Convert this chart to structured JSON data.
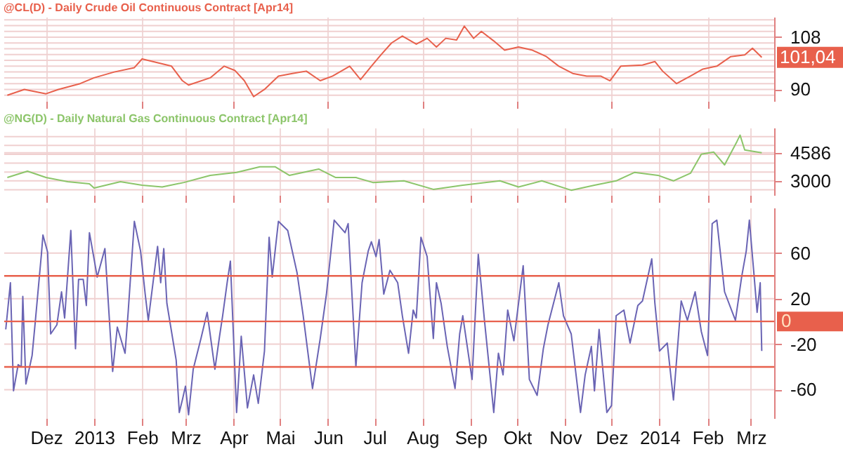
{
  "chart_data": [
    {
      "type": "line",
      "title": "@CL(D) - Daily  Crude Oil Continuous Contract [Apr14]",
      "grid": true,
      "tick_labels": "y",
      "xlim": [
        "2012-11-04",
        "2014-03-16"
      ],
      "xticks": [
        {
          "value": "2012-12-01",
          "label": null
        },
        {
          "value": "2013-01-01",
          "label": null
        },
        {
          "value": "2013-02-01",
          "label": null
        },
        {
          "value": "2013-03-01",
          "label": null
        },
        {
          "value": "2013-04-01",
          "label": null
        },
        {
          "value": "2013-05-01",
          "label": null
        },
        {
          "value": "2013-06-01",
          "label": null
        },
        {
          "value": "2013-07-01",
          "label": null
        },
        {
          "value": "2013-08-01",
          "label": null
        },
        {
          "value": "2013-09-01",
          "label": null
        },
        {
          "value": "2013-10-01",
          "label": null
        },
        {
          "value": "2013-11-01",
          "label": null
        },
        {
          "value": "2013-12-01",
          "label": null
        },
        {
          "value": "2014-01-01",
          "label": null
        },
        {
          "value": "2014-02-01",
          "label": null
        },
        {
          "value": "2014-03-01",
          "label": null
        }
      ],
      "ylim": [
        86,
        115
      ],
      "yticks": [
        {
          "value": 88,
          "label": null
        },
        90,
        {
          "value": 92,
          "label": null
        },
        {
          "value": 94,
          "label": null
        },
        {
          "value": 96,
          "label": null
        },
        {
          "value": 98,
          "label": null
        },
        {
          "value": 100,
          "label": null
        },
        {
          "value": 102,
          "label": null
        },
        {
          "value": 104,
          "label": null
        },
        {
          "value": 106,
          "label": null
        },
        108,
        {
          "value": 110,
          "label": null
        },
        {
          "value": 112,
          "label": null
        },
        {
          "value": 114,
          "label": null
        }
      ],
      "x": [
        "2012-11-06",
        "2012-11-17",
        "2012-12-01",
        "2012-12-09",
        "2012-12-23",
        "2013-01-01",
        "2013-01-14",
        "2013-01-27",
        "2013-02-01",
        "2013-02-14",
        "2013-02-20",
        "2013-02-27",
        "2013-03-03",
        "2013-03-17",
        "2013-03-26",
        "2013-04-02",
        "2013-04-08",
        "2013-04-14",
        "2013-04-21",
        "2013-04-30",
        "2013-05-09",
        "2013-05-18",
        "2013-05-27",
        "2013-06-04",
        "2013-06-15",
        "2013-06-22",
        "2013-06-29",
        "2013-07-05",
        "2013-07-12",
        "2013-07-19",
        "2013-07-28",
        "2013-08-04",
        "2013-08-10",
        "2013-08-16",
        "2013-08-23",
        "2013-08-28",
        "2013-09-03",
        "2013-09-08",
        "2013-09-16",
        "2013-09-23",
        "2013-10-02",
        "2013-10-11",
        "2013-10-20",
        "2013-10-28",
        "2013-11-06",
        "2013-11-15",
        "2013-11-24",
        "2013-11-30",
        "2013-12-07",
        "2013-12-21",
        "2013-12-29",
        "2014-01-03",
        "2014-01-12",
        "2014-01-21",
        "2014-01-29",
        "2014-02-07",
        "2014-02-16",
        "2014-02-25",
        "2014-03-02",
        "2014-03-08"
      ],
      "series": [
        {
          "color": "#e8604c",
          "values": [
            88,
            90,
            88.5,
            90,
            92,
            94,
            96,
            97.5,
            100.5,
            98.8,
            98,
            93,
            91.5,
            94,
            98,
            96.5,
            93,
            87.5,
            90,
            94.6,
            95.5,
            96.3,
            93,
            94.6,
            98,
            93.4,
            98,
            101.8,
            106,
            108.4,
            105.6,
            107.6,
            104.6,
            107.6,
            107,
            111.8,
            107.6,
            110,
            106.7,
            103.5,
            104.6,
            103.5,
            101.3,
            98,
            95.5,
            94.6,
            94.6,
            93,
            98,
            98.4,
            99.6,
            96.3,
            92,
            94.6,
            97,
            98,
            101.3,
            101.9,
            104.2,
            101.04
          ]
        }
      ],
      "annotations": [
        {
          "text": "101,04",
          "x": "2014-03-08",
          "y": 101.04
        }
      ]
    },
    {
      "type": "line",
      "title": "@NG(D) - Daily  Natural Gas Continuous Contract [Apr14]",
      "grid": true,
      "tick_labels": "y",
      "xlim": [
        "2012-11-04",
        "2014-03-16"
      ],
      "xticks": [
        {
          "value": "2012-12-01",
          "label": null
        },
        {
          "value": "2013-01-01",
          "label": null
        },
        {
          "value": "2013-02-01",
          "label": null
        },
        {
          "value": "2013-03-01",
          "label": null
        },
        {
          "value": "2013-04-01",
          "label": null
        },
        {
          "value": "2013-05-01",
          "label": null
        },
        {
          "value": "2013-06-01",
          "label": null
        },
        {
          "value": "2013-07-01",
          "label": null
        },
        {
          "value": "2013-08-01",
          "label": null
        },
        {
          "value": "2013-09-01",
          "label": null
        },
        {
          "value": "2013-10-01",
          "label": null
        },
        {
          "value": "2013-11-01",
          "label": null
        },
        {
          "value": "2013-12-01",
          "label": null
        },
        {
          "value": "2014-01-01",
          "label": null
        },
        {
          "value": "2014-02-01",
          "label": null
        },
        {
          "value": "2014-03-01",
          "label": null
        }
      ],
      "ylim": [
        2200,
        6000
      ],
      "yticks": [
        {
          "value": 2500,
          "label": null
        },
        3000,
        {
          "value": 3500,
          "label": null
        },
        {
          "value": 4000,
          "label": null
        },
        {
          "value": 4500,
          "label": null
        },
        4586,
        {
          "value": 5000,
          "label": null
        },
        {
          "value": 5500,
          "label": null
        }
      ],
      "x": [
        "2012-11-06",
        "2012-11-19",
        "2012-12-01",
        "2012-12-15",
        "2012-12-29",
        "2013-01-01",
        "2013-01-18",
        "2013-02-01",
        "2013-02-14",
        "2013-02-28",
        "2013-03-17",
        "2013-04-03",
        "2013-04-18",
        "2013-04-28",
        "2013-05-07",
        "2013-05-26",
        "2013-06-06",
        "2013-06-19",
        "2013-06-30",
        "2013-07-20",
        "2013-08-08",
        "2013-08-27",
        "2013-09-20",
        "2013-10-02",
        "2013-10-17",
        "2013-11-05",
        "2013-11-20",
        "2013-12-04",
        "2013-12-16",
        "2013-12-31",
        "2014-01-10",
        "2014-01-21",
        "2014-01-28",
        "2014-02-05",
        "2014-02-12",
        "2014-02-20",
        "2014-02-22",
        "2014-02-25",
        "2014-03-08"
      ],
      "series": [
        {
          "color": "#8cc56a",
          "values": [
            3187,
            3547,
            3187,
            2950,
            2832,
            2596,
            2950,
            2757,
            2658,
            2907,
            3311,
            3479,
            3790,
            3790,
            3311,
            3666,
            3187,
            3187,
            2907,
            3000,
            2521,
            2757,
            3000,
            2658,
            3000,
            2471,
            2757,
            3000,
            3479,
            3311,
            3000,
            3429,
            4505,
            4623,
            3902,
            5221,
            5581,
            4742,
            4586
          ]
        }
      ]
    },
    {
      "type": "line",
      "grid": true,
      "xlim": [
        "2012-11-04",
        "2014-03-16"
      ],
      "xticks": [
        {
          "value": "2012-12-01",
          "label": "Dez"
        },
        {
          "value": "2013-01-01",
          "label": "2013"
        },
        {
          "value": "2013-02-01",
          "label": "Feb"
        },
        {
          "value": "2013-03-01",
          "label": "Mrz"
        },
        {
          "value": "2013-04-01",
          "label": "Apr"
        },
        {
          "value": "2013-05-01",
          "label": "Mai"
        },
        {
          "value": "2013-06-01",
          "label": "Jun"
        },
        {
          "value": "2013-07-01",
          "label": "Jul"
        },
        {
          "value": "2013-08-01",
          "label": "Aug"
        },
        {
          "value": "2013-09-01",
          "label": "Sep"
        },
        {
          "value": "2013-10-01",
          "label": "Okt"
        },
        {
          "value": "2013-11-01",
          "label": "Nov"
        },
        {
          "value": "2013-12-01",
          "label": "Dez"
        },
        {
          "value": "2014-01-01",
          "label": "2014"
        },
        {
          "value": "2014-02-01",
          "label": "Feb"
        },
        {
          "value": "2014-03-01",
          "label": "Mrz"
        }
      ],
      "ylim": [
        -85,
        100
      ],
      "yticks": [
        -60,
        -20,
        20,
        60
      ],
      "x": [
        "2012-11-05",
        "2012-11-08",
        "2012-11-10",
        "2012-11-13",
        "2012-11-15",
        "2012-11-16",
        "2012-11-18",
        "2012-11-22",
        "2012-11-24",
        "2012-11-28",
        "2012-11-29",
        "2012-12-02",
        "2012-12-04",
        "2012-12-08",
        "2012-12-11",
        "2012-12-13",
        "2012-12-17",
        "2012-12-20",
        "2012-12-22",
        "2012-12-25",
        "2012-12-27",
        "2012-12-29",
        "2013-01-01",
        "2013-01-03",
        "2013-01-08",
        "2013-01-13",
        "2013-01-16",
        "2013-01-21",
        "2013-01-23",
        "2013-01-27",
        "2013-01-31",
        "2013-02-03",
        "2013-02-05",
        "2013-02-11",
        "2013-02-13",
        "2013-02-15",
        "2013-02-17",
        "2013-02-23",
        "2013-02-25",
        "2013-02-27",
        "2013-03-01",
        "2013-03-03",
        "2013-03-06",
        "2013-03-11",
        "2013-03-15",
        "2013-03-20",
        "2013-03-23",
        "2013-03-25",
        "2013-03-28",
        "2013-03-30",
        "2013-04-03",
        "2013-04-06",
        "2013-04-10",
        "2013-04-14",
        "2013-04-17",
        "2013-04-21",
        "2013-04-24",
        "2013-04-26",
        "2013-04-30",
        "2013-05-06",
        "2013-05-12",
        "2013-05-16",
        "2013-05-22",
        "2013-05-27",
        "2013-05-31",
        "2013-06-05",
        "2013-06-12",
        "2013-06-14",
        "2013-06-19",
        "2013-06-23",
        "2013-06-27",
        "2013-06-29",
        "2013-07-02",
        "2013-07-04",
        "2013-07-07",
        "2013-07-11",
        "2013-07-16",
        "2013-07-19",
        "2013-07-23",
        "2013-07-26",
        "2013-07-28",
        "2013-07-31",
        "2013-08-04",
        "2013-08-08",
        "2013-08-10",
        "2013-08-13",
        "2013-08-17",
        "2013-08-22",
        "2013-08-25",
        "2013-08-27",
        "2013-09-02",
        "2013-09-06",
        "2013-09-10",
        "2013-09-16",
        "2013-09-19",
        "2013-09-22",
        "2013-09-25",
        "2013-09-29",
        "2013-10-05",
        "2013-10-09",
        "2013-10-14",
        "2013-10-18",
        "2013-10-21",
        "2013-10-28",
        "2013-10-31",
        "2013-11-05",
        "2013-11-11",
        "2013-11-14",
        "2013-11-18",
        "2013-11-20",
        "2013-11-23",
        "2013-11-28",
        "2013-12-01",
        "2013-12-04",
        "2013-12-09",
        "2013-12-13",
        "2013-12-18",
        "2013-12-21",
        "2013-12-27",
        "2013-12-29",
        "2014-01-01",
        "2014-01-06",
        "2014-01-10",
        "2014-01-15",
        "2014-01-19",
        "2014-01-24",
        "2014-01-28",
        "2014-02-01",
        "2014-02-04",
        "2014-02-07",
        "2014-02-12",
        "2014-02-19",
        "2014-02-23",
        "2014-02-26",
        "2014-02-28",
        "2014-03-03",
        "2014-03-05",
        "2014-03-07",
        "2014-03-08"
      ],
      "series": [
        {
          "color": "#6a64b4",
          "values": [
            -7,
            34,
            -61,
            -38,
            -40,
            22,
            -55,
            -30,
            -1,
            59,
            76,
            61,
            -11,
            -3,
            26,
            3,
            80,
            -24,
            37,
            37,
            14,
            78,
            55,
            39,
            64,
            -44,
            -5,
            -28,
            8,
            88,
            62,
            24,
            1,
            66,
            34,
            64,
            16,
            -34,
            -80,
            -69,
            -57,
            -82,
            -42,
            -15,
            8,
            -42,
            -13,
            5,
            35,
            53,
            -80,
            -13,
            -76,
            -47,
            -72,
            -26,
            74,
            39,
            88,
            80,
            43,
            5,
            -59,
            -15,
            24,
            89,
            78,
            86,
            -40,
            34,
            62,
            70,
            57,
            72,
            24,
            45,
            34,
            5,
            -28,
            10,
            3,
            74,
            57,
            -15,
            34,
            16,
            -22,
            -59,
            -11,
            5,
            -51,
            59,
            1,
            -80,
            -28,
            -47,
            10,
            -17,
            49,
            -51,
            -65,
            -24,
            -3,
            34,
            5,
            -11,
            -80,
            -47,
            -22,
            -61,
            -7,
            -80,
            -74,
            5,
            10,
            -19,
            14,
            18,
            55,
            16,
            -26,
            -19,
            -69,
            18,
            1,
            26,
            -9,
            -30,
            86,
            89,
            26,
            1,
            39,
            62,
            89,
            41,
            8,
            34,
            -26
          ]
        }
      ],
      "ref_lines": [
        {
          "axis": "y",
          "value": 40,
          "color": "#e8604c"
        },
        {
          "axis": "y",
          "value": 0,
          "label": "0",
          "color": "#e8604c"
        },
        {
          "axis": "y",
          "value": -40,
          "color": "#e8604c"
        }
      ]
    }
  ]
}
